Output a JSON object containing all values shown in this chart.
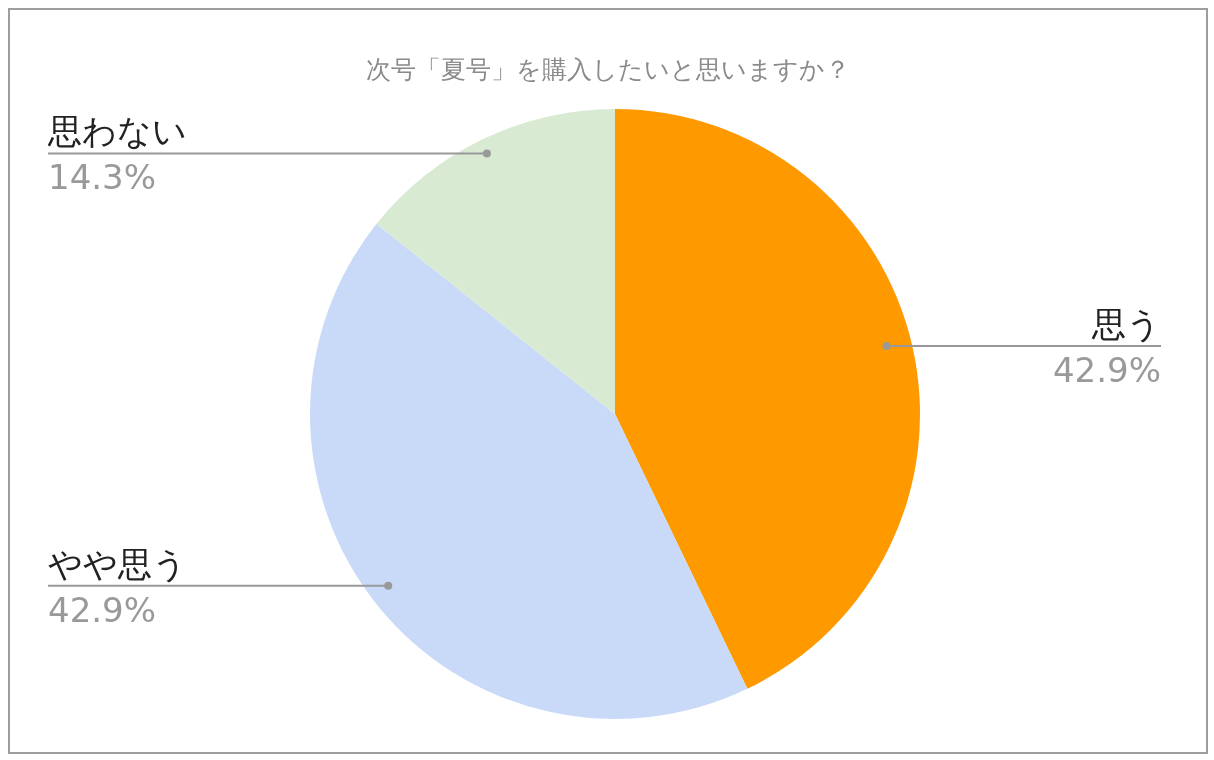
{
  "chart_data": {
    "type": "pie",
    "title": "次号「夏号」を購入したいと思いますか？",
    "categories": [
      "思う",
      "やや思う",
      "思わない"
    ],
    "values": [
      42.9,
      42.9,
      14.3
    ],
    "colors": [
      "#ff9900",
      "#c9daf8",
      "#d9ead3"
    ],
    "value_labels": [
      "42.9%",
      "42.9%",
      "14.3%"
    ],
    "legend": false
  }
}
